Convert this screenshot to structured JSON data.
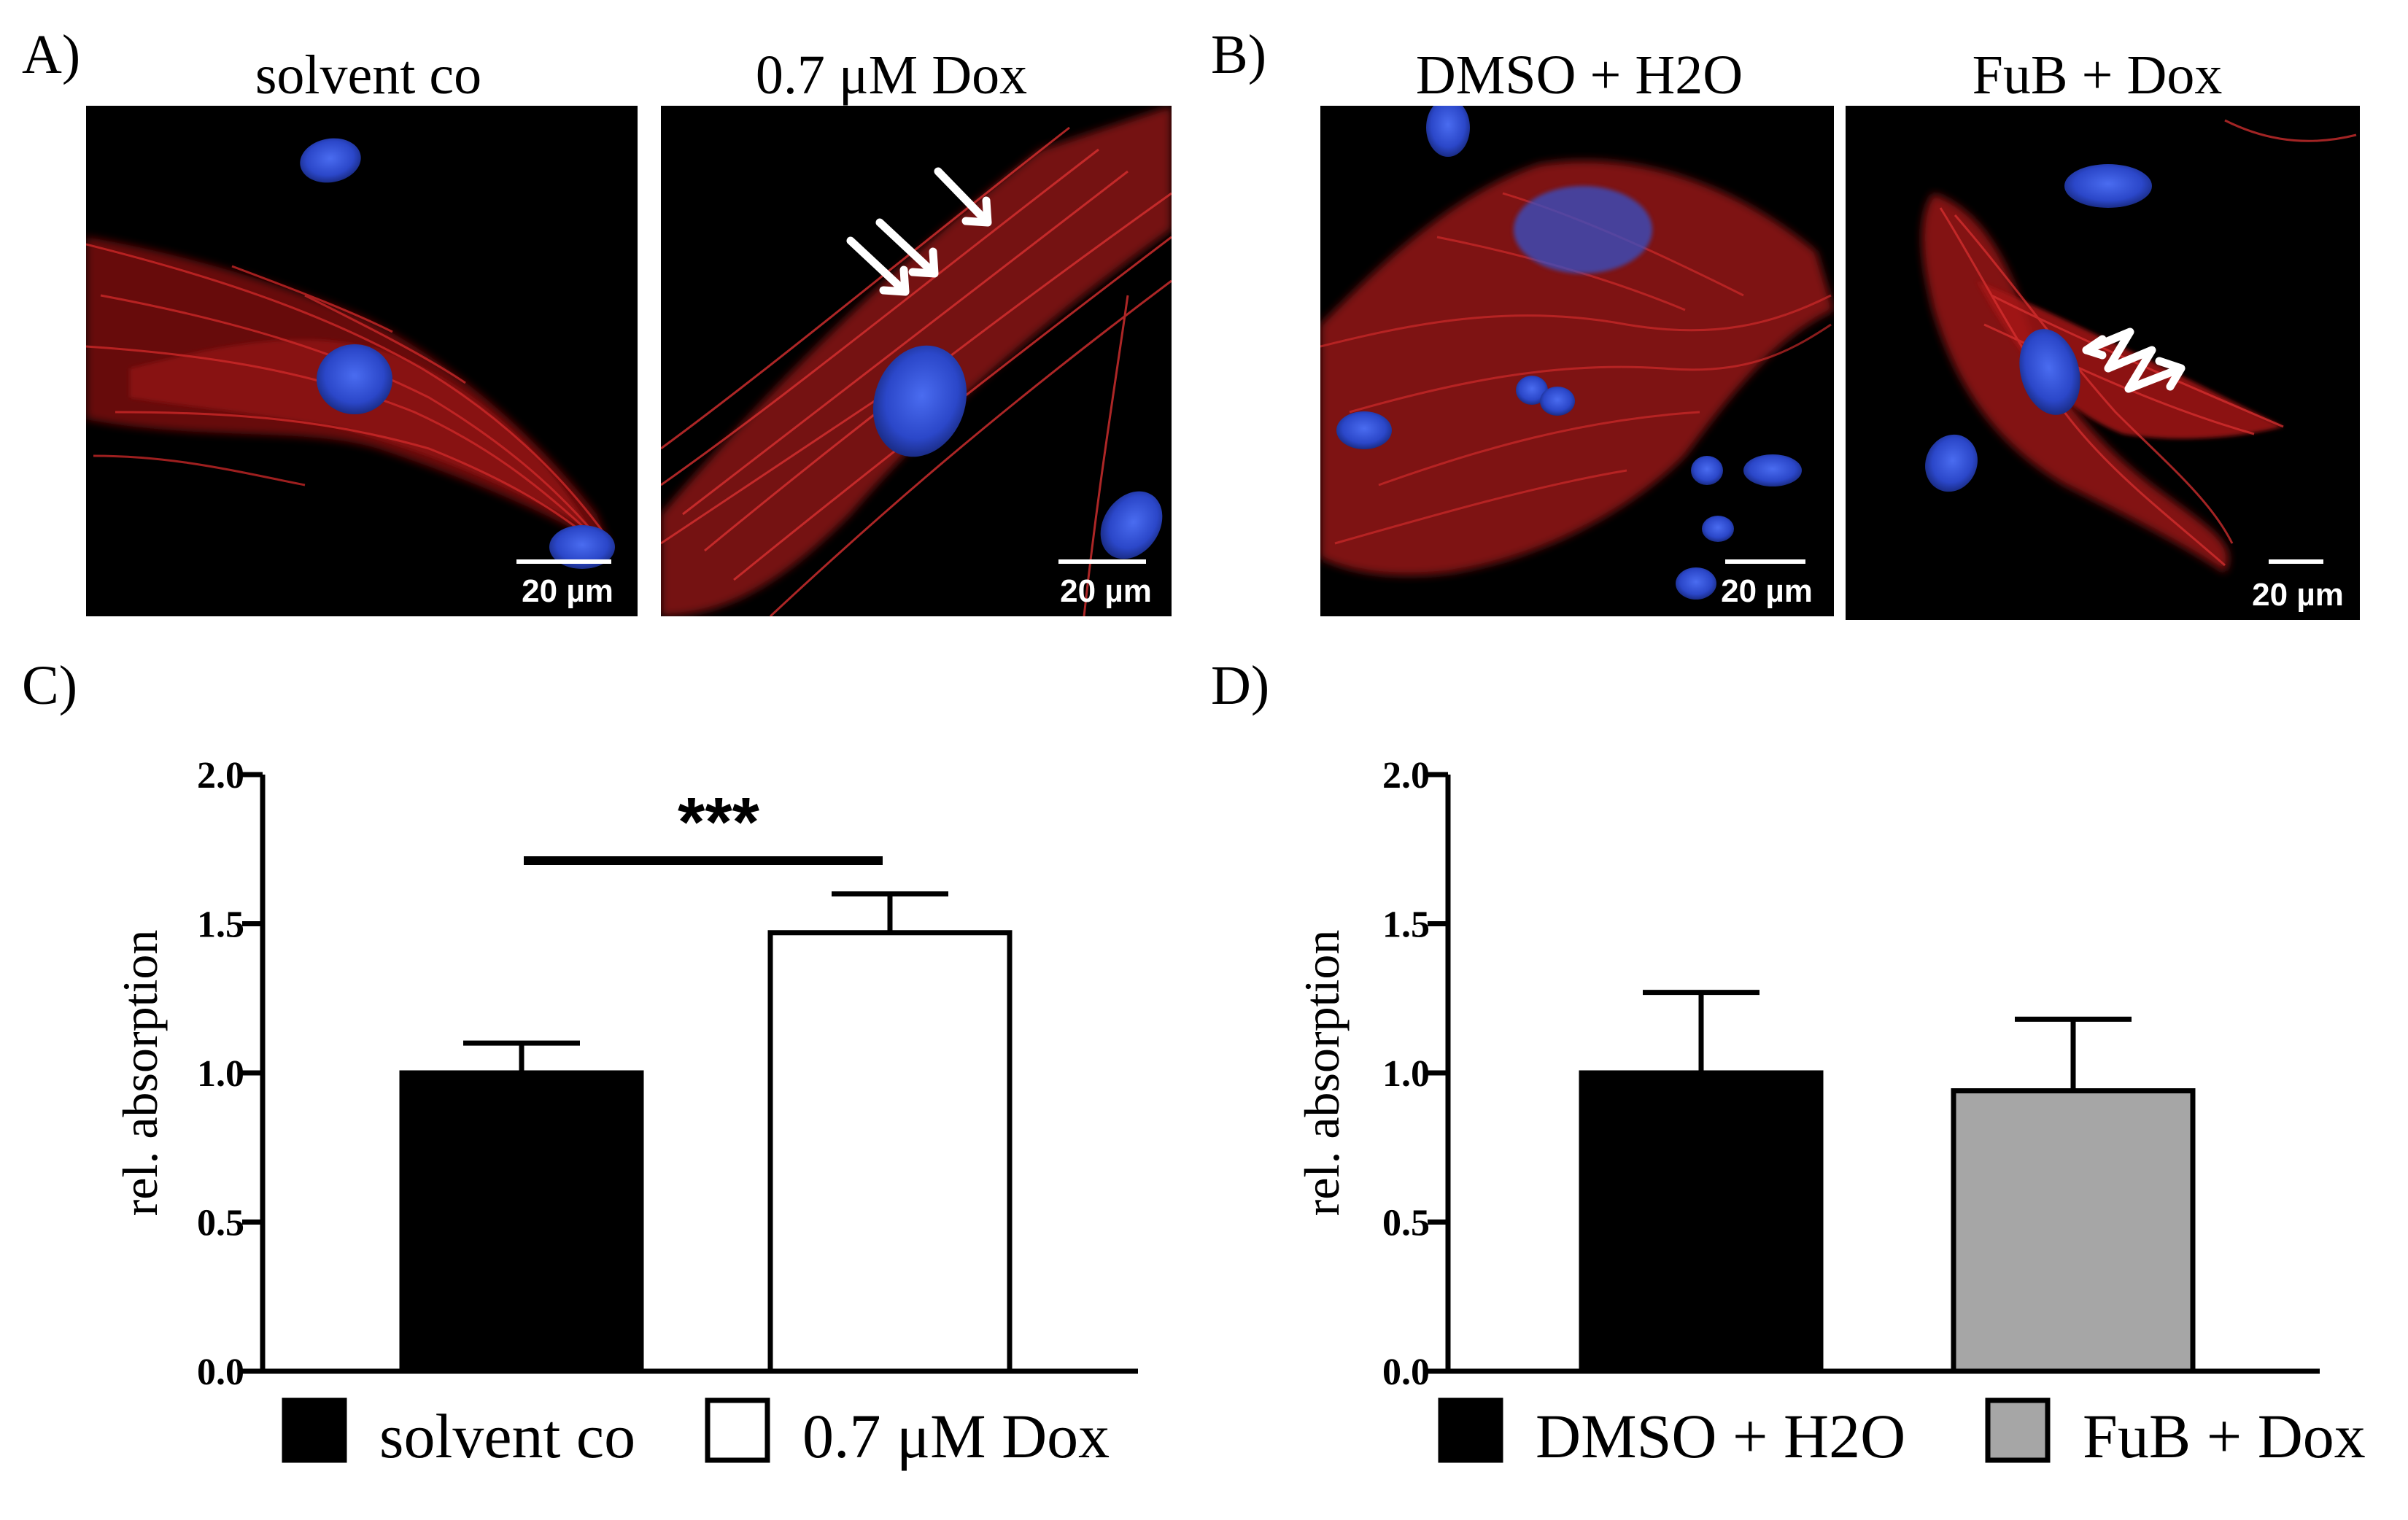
{
  "figure": {
    "panel_a": {
      "label": "A)",
      "images": [
        {
          "title": "solvent co",
          "scale_bar": "20 µm"
        },
        {
          "title": "0.7 μM Dox",
          "scale_bar": "20 µm"
        }
      ]
    },
    "panel_b": {
      "label": "B)",
      "images": [
        {
          "title": "DMSO + H2O",
          "scale_bar": "20 µm"
        },
        {
          "title": "FuB + Dox",
          "scale_bar": "20 µm"
        }
      ]
    },
    "panel_c_label": "C)",
    "panel_d_label": "D)",
    "colors": {
      "black": "#000000",
      "white": "#ffffff",
      "grey": "#a6a6a6",
      "actin": "#c41c1c",
      "nucleus": "#2d4fd6"
    }
  },
  "chart_data": [
    {
      "panel": "C",
      "type": "bar",
      "categories": [
        "solvent co",
        "0.7 μM Dox"
      ],
      "values": [
        1.0,
        1.47
      ],
      "errors": [
        0.1,
        0.13
      ],
      "colors": [
        "#000000",
        "#ffffff"
      ],
      "ylabel": "rel. absorption",
      "ylim": [
        0.0,
        2.0
      ],
      "yticks": [
        "0.0",
        "0.5",
        "1.0",
        "1.5",
        "2.0"
      ],
      "significance": "***",
      "legend": [
        "solvent co",
        "0.7 μM Dox"
      ]
    },
    {
      "panel": "D",
      "type": "bar",
      "categories": [
        "DMSO + H2O",
        "FuB + Dox"
      ],
      "values": [
        1.0,
        0.94
      ],
      "errors": [
        0.27,
        0.24
      ],
      "colors": [
        "#000000",
        "#a6a6a6"
      ],
      "ylabel": "rel. absorption",
      "ylim": [
        0.0,
        2.0
      ],
      "yticks": [
        "0.0",
        "0.5",
        "1.0",
        "1.5",
        "2.0"
      ],
      "legend": [
        "DMSO + H2O",
        "FuB + Dox"
      ]
    }
  ]
}
